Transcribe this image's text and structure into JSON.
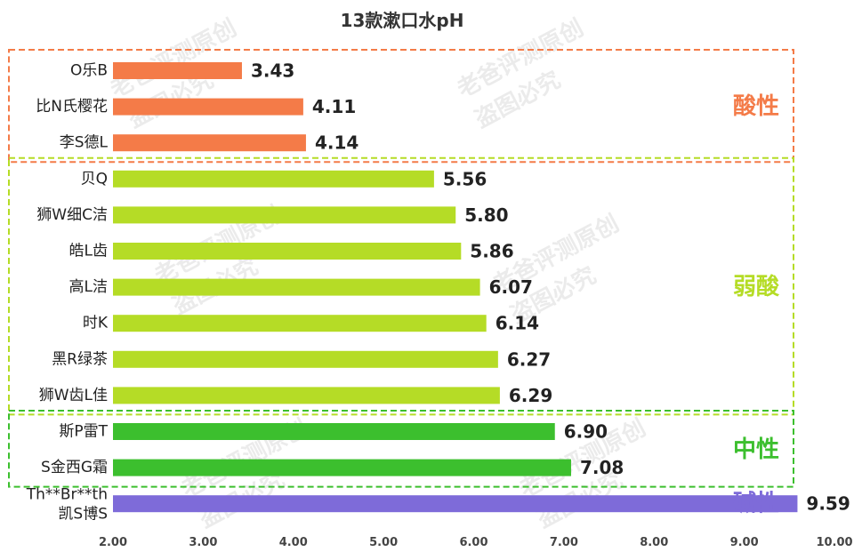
{
  "chart_data": {
    "type": "bar",
    "orientation": "horizontal",
    "title": "13款漱口水pH",
    "categories": [
      "O乐B",
      "比N氏樱花",
      "李S德L",
      "贝Q",
      "狮W细C洁",
      "皓L齿",
      "高L洁",
      "时K",
      "黑R绿茶",
      "狮W齿L佳",
      "斯P雷T",
      "S金西G霜",
      "Th**Br**th\n凯S博S"
    ],
    "values": [
      3.43,
      4.11,
      4.14,
      5.56,
      5.8,
      5.86,
      6.07,
      6.14,
      6.27,
      6.29,
      6.9,
      7.08,
      9.59
    ],
    "value_labels": [
      "3.43",
      "4.11",
      "4.14",
      "5.56",
      "5.80",
      "5.86",
      "6.07",
      "6.14",
      "6.27",
      "6.29",
      "6.90",
      "7.08",
      "9.59"
    ],
    "bar_colors": [
      "#f47b48",
      "#f47b48",
      "#f47b48",
      "#b5dc26",
      "#b5dc26",
      "#b5dc26",
      "#b5dc26",
      "#b5dc26",
      "#b5dc26",
      "#b5dc26",
      "#3cbf2e",
      "#3cbf2e",
      "#7e6bd9"
    ],
    "xlim": [
      2.0,
      10.0
    ],
    "xticks": [
      "2.00",
      "3.00",
      "4.00",
      "5.00",
      "6.00",
      "7.00",
      "8.00",
      "9.00",
      "10.00"
    ],
    "grid": false,
    "groups": [
      {
        "label": "酸性",
        "color": "#f47b48",
        "first": 0,
        "last": 2,
        "boxed": true
      },
      {
        "label": "弱酸",
        "color": "#b5dc26",
        "first": 3,
        "last": 9,
        "boxed": true
      },
      {
        "label": "中性",
        "color": "#3cbf2e",
        "first": 10,
        "last": 11,
        "boxed": true
      },
      {
        "label": "碱性",
        "color": "#7e6bd9",
        "first": 12,
        "last": 12,
        "boxed": false
      }
    ]
  },
  "watermark": [
    "老爸评测原创",
    "盗图必究"
  ]
}
